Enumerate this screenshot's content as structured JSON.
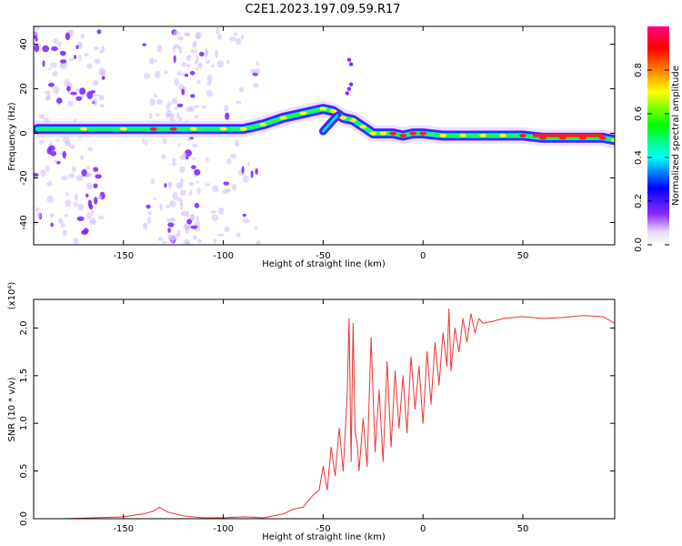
{
  "title": "C2E1.2023.197.09.59.R17",
  "chart_data": [
    {
      "type": "heatmap",
      "xlabel": "Height of straight line (km)",
      "ylabel": "Frequency (Hz)",
      "xlim": [
        -195,
        96
      ],
      "ylim": [
        -50,
        48
      ],
      "xticks": [
        -150,
        -100,
        -50,
        0,
        50
      ],
      "yticks": [
        -40,
        -20,
        0,
        20,
        40
      ],
      "colorbar": {
        "label": "Normalized spectral amplitude",
        "range": [
          0,
          1
        ],
        "ticks": [
          0.0,
          0.2,
          0.4,
          0.6,
          0.8
        ],
        "tick_labels": [
          "0.0",
          "0.2",
          "0.4",
          "0.6",
          "0.8"
        ],
        "colors": [
          "#ffffff",
          "#e8d8ff",
          "#8b2cff",
          "#0000ff",
          "#00ffff",
          "#00ff00",
          "#ffff00",
          "#ff8000",
          "#ff0000",
          "#ff00ff"
        ]
      },
      "ridge": {
        "x": [
          -193,
          -170,
          -150,
          -135,
          -125,
          -115,
          -100,
          -90,
          -80,
          -70,
          -60,
          -50,
          -45,
          -40,
          -35,
          -30,
          -25,
          -20,
          -15,
          -10,
          -5,
          0,
          10,
          20,
          30,
          40,
          50,
          60,
          70,
          80,
          90,
          96
        ],
        "y": [
          2,
          2,
          2,
          2,
          2,
          2,
          2,
          2,
          4,
          7,
          9,
          11,
          10,
          7,
          6,
          3,
          0,
          0,
          0,
          -1,
          0,
          0,
          -1,
          -1,
          -1,
          -1,
          -1,
          -2,
          -2,
          -2,
          -2,
          -3
        ]
      },
      "branch": {
        "x": [
          -50,
          -46,
          -43
        ],
        "y": [
          1,
          5,
          8
        ]
      },
      "outliers": {
        "x": [
          -38,
          -37,
          -36,
          -36,
          -37
        ],
        "y": [
          18,
          20,
          22,
          31,
          33
        ]
      }
    },
    {
      "type": "line",
      "xlabel": "Height of straight line (km)",
      "ylabel": "SNR (10 * v/v)",
      "y_multiplier": "(x10⁴)",
      "xlim": [
        -195,
        96
      ],
      "ylim": [
        0,
        2.3
      ],
      "xticks": [
        -150,
        -100,
        -50,
        0,
        50
      ],
      "yticks": [
        0.0,
        0.5,
        1.0,
        1.5,
        2.0
      ],
      "ytick_labels": [
        "0.0",
        "0.5",
        "1.0",
        "1.5",
        "2.0"
      ],
      "line_color": "#ee3333",
      "x": [
        -195,
        -180,
        -165,
        -150,
        -140,
        -135,
        -132,
        -128,
        -120,
        -110,
        -100,
        -90,
        -80,
        -70,
        -65,
        -60,
        -55,
        -52,
        -50,
        -48,
        -46,
        -44,
        -42,
        -40,
        -38,
        -37,
        -36,
        -35,
        -34,
        -33,
        -32,
        -30,
        -28,
        -26,
        -24,
        -22,
        -20,
        -18,
        -16,
        -14,
        -12,
        -10,
        -8,
        -6,
        -4,
        -2,
        0,
        2,
        4,
        6,
        8,
        10,
        12,
        13,
        14,
        16,
        18,
        20,
        22,
        24,
        26,
        28,
        30,
        35,
        40,
        50,
        60,
        70,
        80,
        90,
        96
      ],
      "y": [
        0.0,
        0.0,
        0.01,
        0.02,
        0.05,
        0.08,
        0.12,
        0.07,
        0.03,
        0.01,
        0.01,
        0.02,
        0.01,
        0.05,
        0.1,
        0.12,
        0.25,
        0.3,
        0.55,
        0.3,
        0.75,
        0.45,
        0.95,
        0.5,
        1.3,
        2.1,
        0.6,
        2.05,
        0.9,
        0.8,
        0.5,
        1.05,
        0.55,
        1.9,
        0.7,
        1.35,
        0.6,
        1.65,
        0.75,
        1.55,
        0.95,
        1.5,
        0.9,
        1.7,
        1.15,
        1.6,
        1.0,
        1.75,
        1.2,
        1.85,
        1.4,
        1.95,
        1.6,
        2.2,
        1.55,
        2.0,
        1.75,
        2.1,
        1.85,
        2.15,
        1.95,
        2.1,
        2.05,
        2.07,
        2.1,
        2.12,
        2.1,
        2.11,
        2.13,
        2.12,
        2.05
      ]
    }
  ]
}
